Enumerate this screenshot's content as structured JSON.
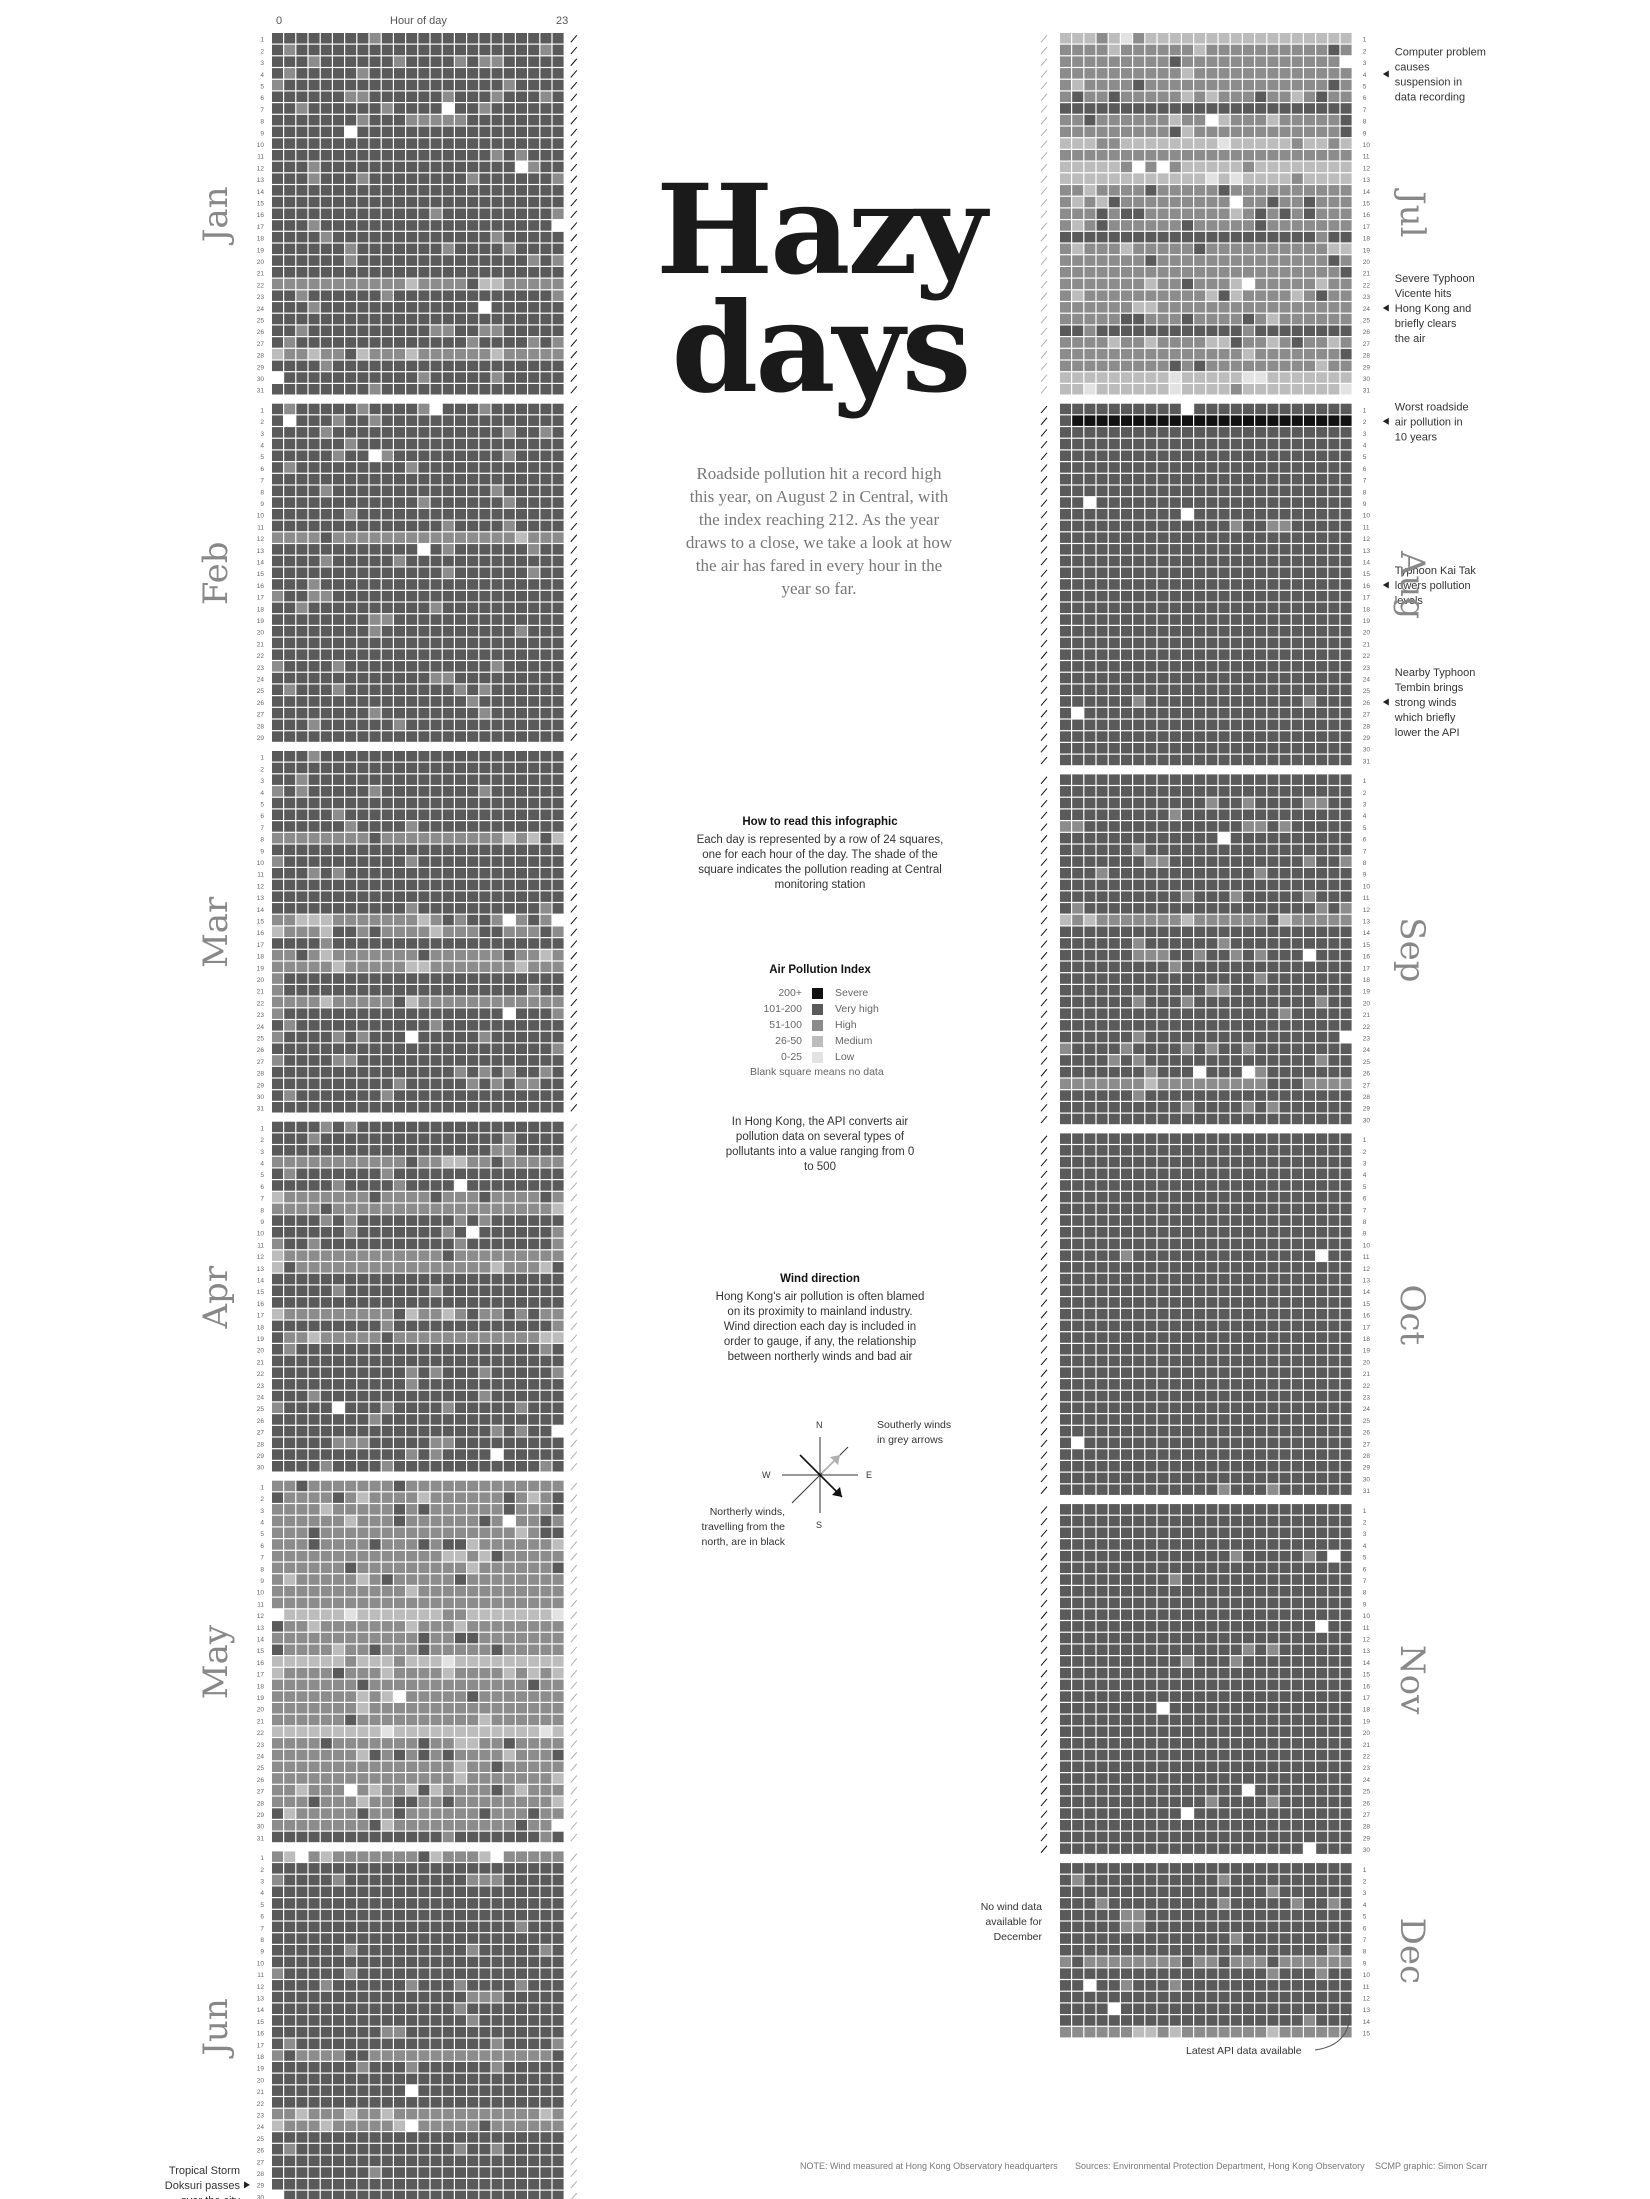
{
  "chart_data": {
    "type": "heatmap",
    "title": "Hazy days",
    "subtitle": "Roadside pollution hit a record high this year, on August 2 in Central, with the index reaching 212. As the year draws to a close, we take a look at how the air has fared in every hour in the year so far.",
    "x_axis": {
      "label": "Hour of day",
      "start": "0",
      "end": "23"
    },
    "months": [
      {
        "name": "Jan",
        "days": 31,
        "base": 3,
        "wind": "north"
      },
      {
        "name": "Feb",
        "days": 29,
        "base": 3,
        "wind": "north"
      },
      {
        "name": "Mar",
        "days": 31,
        "base": 3,
        "wind": "north"
      },
      {
        "name": "Apr",
        "days": 30,
        "base": 3,
        "wind": "south"
      },
      {
        "name": "May",
        "days": 31,
        "base": 2,
        "wind": "south"
      },
      {
        "name": "Jun",
        "days": 30,
        "base": 3,
        "wind": "south"
      },
      {
        "name": "Jul",
        "days": 31,
        "base": 2,
        "wind": "south"
      },
      {
        "name": "Aug",
        "days": 31,
        "base": 4,
        "wind": "north"
      },
      {
        "name": "Sep",
        "days": 30,
        "base": 3,
        "wind": "north"
      },
      {
        "name": "Oct",
        "days": 31,
        "base": 4,
        "wind": "north"
      },
      {
        "name": "Nov",
        "days": 30,
        "base": 4,
        "wind": "north"
      },
      {
        "name": "Dec",
        "days": 15,
        "base": 3,
        "wind": "none"
      }
    ],
    "legend": {
      "title": "Air Pollution Index",
      "levels": [
        {
          "range": "200+",
          "label": "Severe",
          "color": "#111111"
        },
        {
          "range": "101-200",
          "label": "Very high",
          "color": "#5a5a5a"
        },
        {
          "range": "51-100",
          "label": "High",
          "color": "#8c8c8c"
        },
        {
          "range": "26-50",
          "label": "Medium",
          "color": "#bcbcbc"
        },
        {
          "range": "0-25",
          "label": "Low",
          "color": "#e2e2e2"
        }
      ],
      "blank_note": "Blank square means no data"
    },
    "annotations": [
      {
        "month": "Jul",
        "day": 4,
        "text": "Computer problem causes suspension in data recording"
      },
      {
        "month": "Jul",
        "day": 24,
        "text": "Severe Typhoon Vicente hits Hong Kong and briefly clears the air"
      },
      {
        "month": "Aug",
        "day": 2,
        "text": "Worst roadside air pollution in 10 years"
      },
      {
        "month": "Aug",
        "day": 16,
        "text": "Typhoon Kai Tak lowers pollution levels"
      },
      {
        "month": "Aug",
        "day": 26,
        "text": "Nearby Typhoon Tembin brings strong winds which briefly lower the API"
      },
      {
        "month": "Jun",
        "day": 29,
        "text": "Tropical Storm Doksuri passes over the city"
      }
    ]
  },
  "how_to": {
    "title": "How to read this infographic",
    "text": "Each day is represented by a row of 24 squares, one for each hour of the day. The shade of the square indicates the pollution reading at Central monitoring station"
  },
  "api_note": "In Hong Kong, the API converts air pollution data on several types of pollutants into a value ranging from 0 to 500",
  "wind": {
    "title": "Wind direction",
    "text": "Hong Kong's air pollution is often blamed on its proximity to mainland industry. Wind direction each day is included in order to gauge, if any, the relationship between northerly winds and bad air",
    "southerly": "Southerly winds in grey arrows",
    "northerly": "Northerly winds, travelling from the north, are in black",
    "n": "N",
    "s": "S",
    "e": "E",
    "w": "W"
  },
  "no_wind_dec": "No wind data available for December",
  "latest": "Latest API data available",
  "footer": {
    "note": "NOTE: Wind measured at Hong Kong Observatory headquarters",
    "sources": "Sources: Environmental Protection Department, Hong Kong Observatory",
    "credit": "SCMP graphic: Simon Scarr"
  },
  "colors": {
    "severe": "#111111",
    "very_high": "#5a5a5a",
    "high": "#8c8c8c",
    "medium": "#bcbcbc",
    "low": "#e2e2e2",
    "north_arrow": "#111111",
    "south_arrow": "#b0b0b0"
  }
}
